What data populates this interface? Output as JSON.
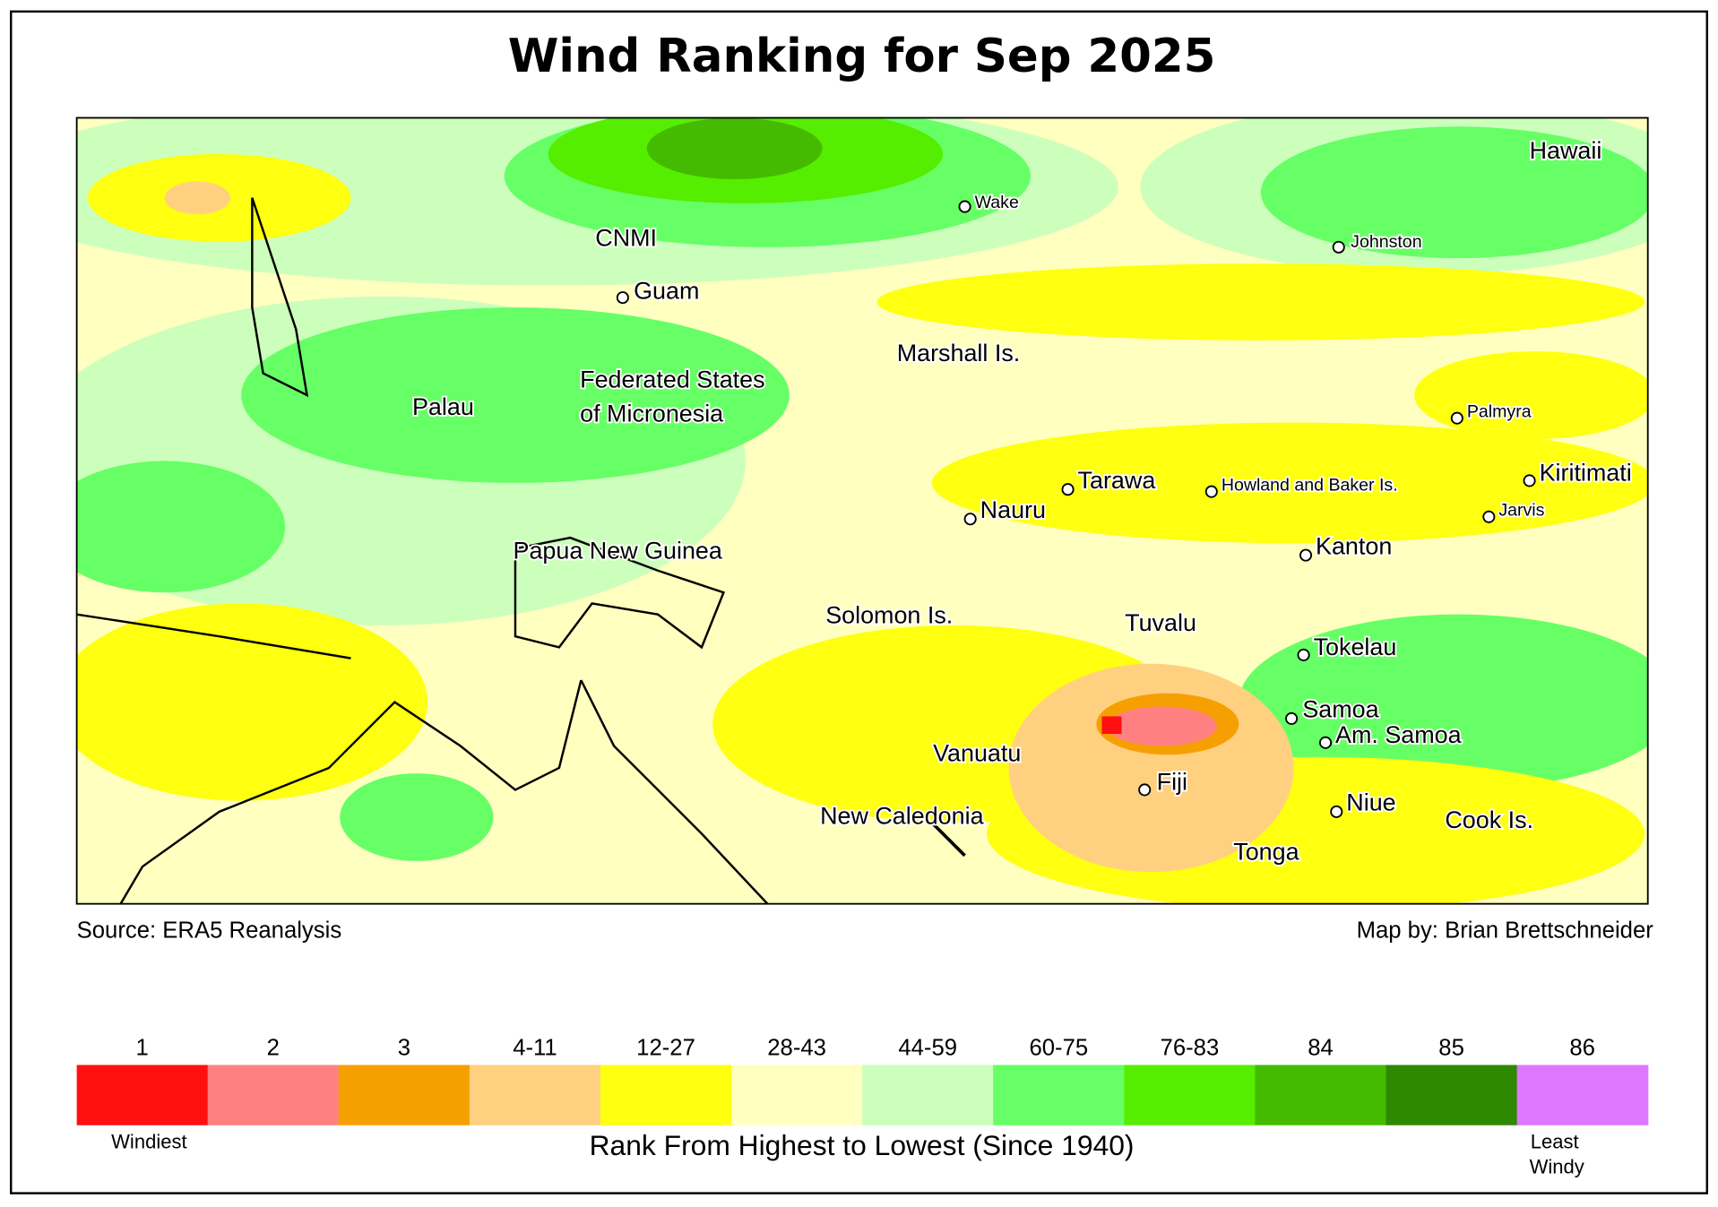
{
  "header": {
    "title": "Wind Ranking for Sep 2025"
  },
  "places": [
    "Wake",
    "CNMI",
    "Guam",
    "Johnston",
    "Hawaii",
    "Marshall Is.",
    "Federated States",
    "of Micronesia",
    "Palau",
    "Palmyra",
    "Tarawa",
    "Howland and Baker Is.",
    "Kiritimati",
    "Nauru",
    "Jarvis",
    "Kanton",
    "Papua New Guinea",
    "Solomon Is.",
    "Tuvalu",
    "Tokelau",
    "Samoa",
    "Am. Samoa",
    "Vanuatu",
    "Fiji",
    "Niue",
    "Cook Is.",
    "New Caledonia",
    "Tonga"
  ],
  "source": "Source: ERA5 Reanalysis",
  "credit": "Map by: Brian Brettschneider",
  "legend": {
    "title": "Rank From Highest to Lowest (Since 1940)",
    "low_label": "Windiest",
    "high_label": [
      "Least",
      "Windy"
    ],
    "bins": [
      {
        "label": "1",
        "color": "#ff1010"
      },
      {
        "label": "2",
        "color": "#ff8080"
      },
      {
        "label": "3",
        "color": "#f5a000"
      },
      {
        "label": "4-11",
        "color": "#ffd080"
      },
      {
        "label": "12-27",
        "color": "#ffff10"
      },
      {
        "label": "28-43",
        "color": "#ffffc0"
      },
      {
        "label": "44-59",
        "color": "#ccffbb"
      },
      {
        "label": "60-75",
        "color": "#66ff66"
      },
      {
        "label": "76-83",
        "color": "#55ee00"
      },
      {
        "label": "84",
        "color": "#44bb00"
      },
      {
        "label": "85",
        "color": "#2e8800"
      },
      {
        "label": "86",
        "color": "#dd77ff"
      }
    ]
  }
}
